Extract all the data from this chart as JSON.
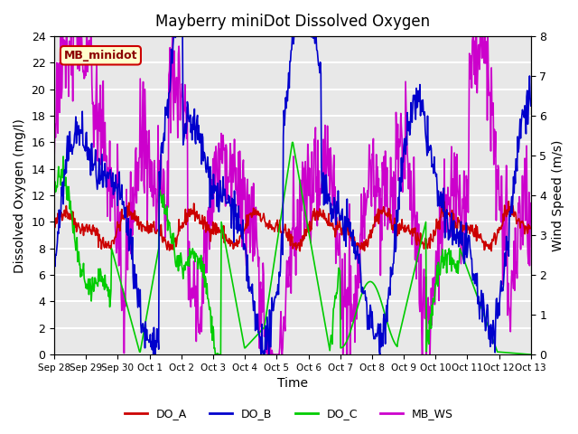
{
  "title": "Mayberry miniDot Dissolved Oxygen",
  "xlabel": "Time",
  "ylabel_left": "Dissolved Oxygen (mg/l)",
  "ylabel_right": "Wind Speed (m/s)",
  "annotation_text": "MB_minidot",
  "left_ylim": [
    0,
    24
  ],
  "right_ylim": [
    0.0,
    8.0
  ],
  "left_yticks": [
    0,
    2,
    4,
    6,
    8,
    10,
    12,
    14,
    16,
    18,
    20,
    22,
    24
  ],
  "right_yticks": [
    0.0,
    1.0,
    2.0,
    3.0,
    4.0,
    5.0,
    6.0,
    7.0,
    8.0
  ],
  "xtick_labels": [
    "Sep 28",
    "Sep 29",
    "Sep 30",
    "Oct 1",
    "Oct 2",
    "Oct 3",
    "Oct 4",
    "Oct 5",
    "Oct 6",
    "Oct 7",
    "Oct 8",
    "Oct 9",
    "Oct 10",
    "Oct 11",
    "Oct 12",
    "Oct 13"
  ],
  "colors": {
    "DO_A": "#cc0000",
    "DO_B": "#0000cc",
    "DO_C": "#00cc00",
    "MB_WS": "#cc00cc",
    "background": "#e8e8e8",
    "annotation_bg": "#ffffcc",
    "annotation_border": "#cc0000"
  },
  "legend_entries": [
    "DO_A",
    "DO_B",
    "DO_C",
    "MB_WS"
  ],
  "grid_color": "#ffffff",
  "linewidth": 1.2
}
